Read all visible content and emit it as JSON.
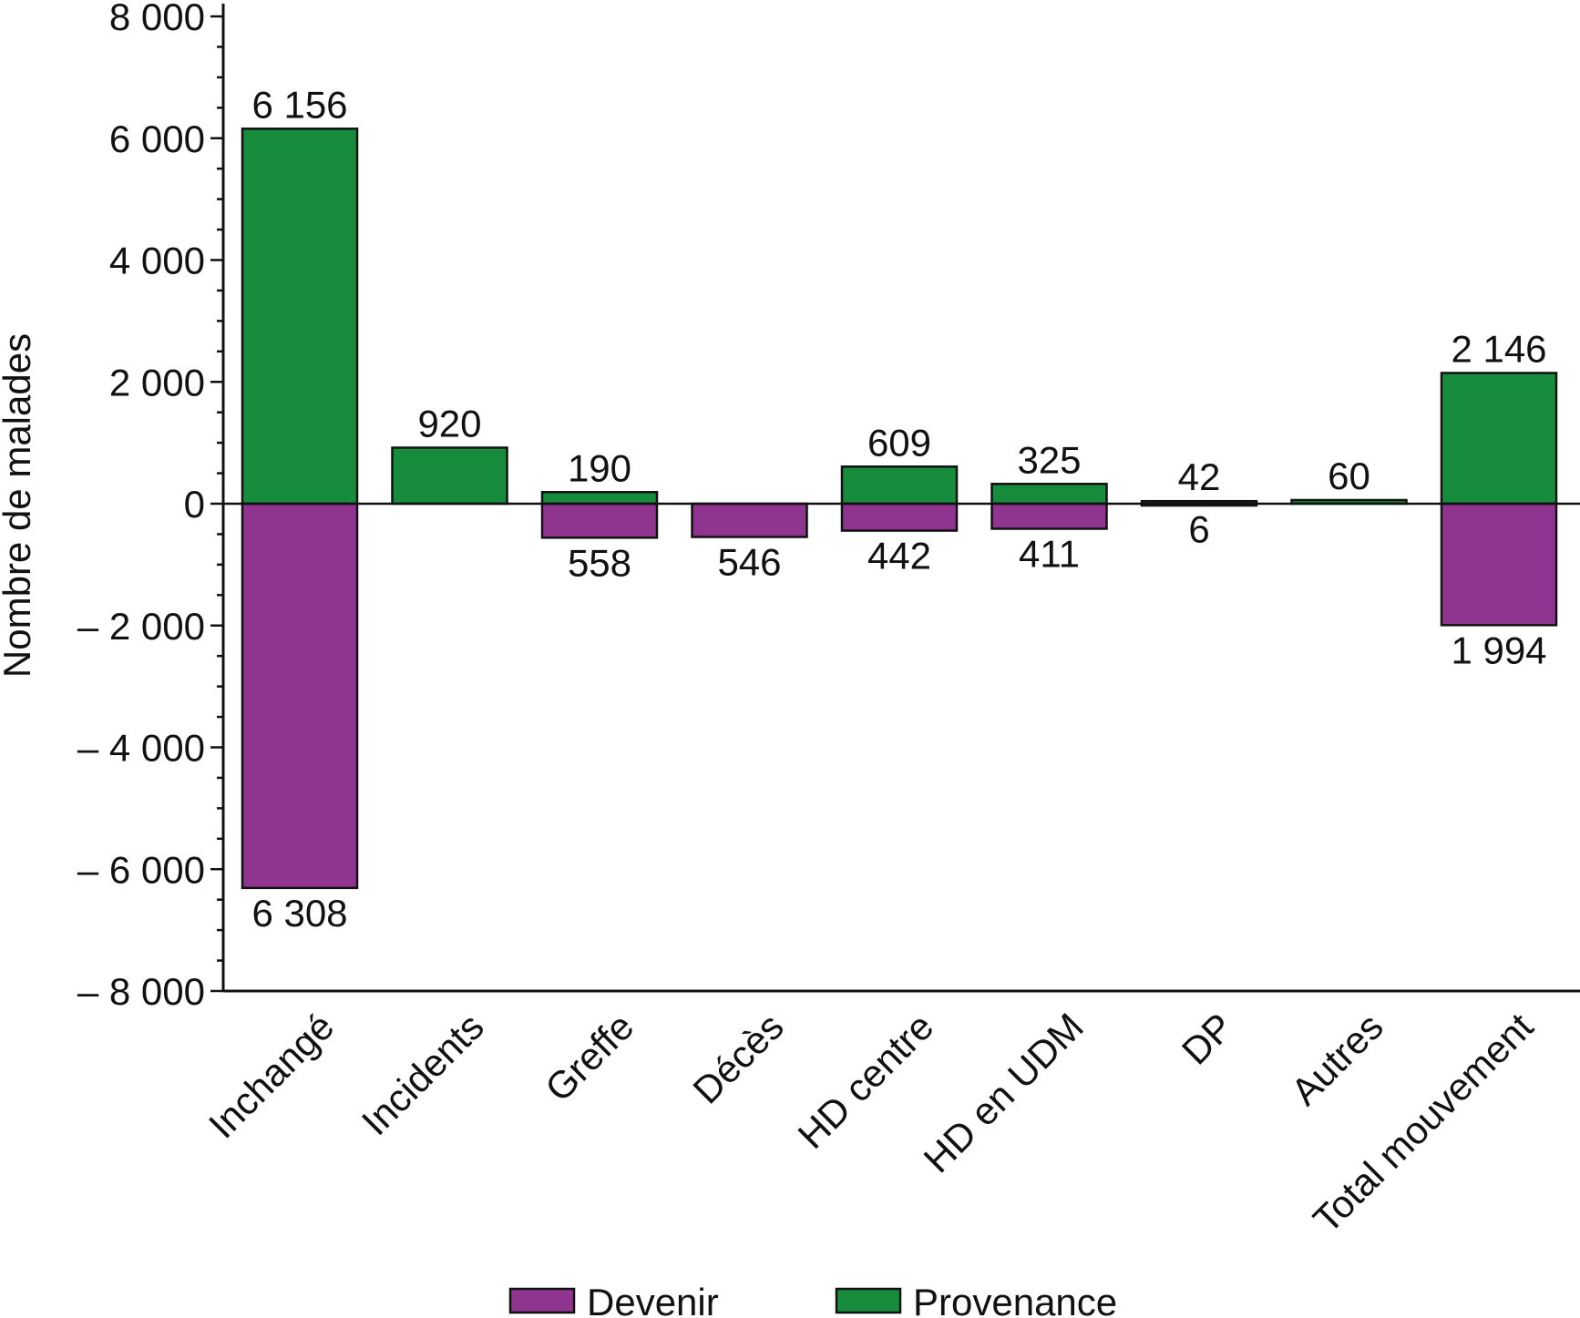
{
  "chart_data": {
    "type": "bar",
    "ylabel": "Nombre de malades",
    "ylim": [
      -8000,
      8000
    ],
    "yticks": [
      8000,
      6000,
      4000,
      2000,
      0,
      -2000,
      -4000,
      -6000,
      -8000
    ],
    "ytick_labels": [
      "8 000",
      "6 000",
      "4 000",
      "2 000",
      "0",
      "– 2 000",
      "– 4 000",
      "– 6 000",
      "– 8 000"
    ],
    "categories": [
      "Inchangé",
      "Incidents",
      "Greffe",
      "Décès",
      "HD centre",
      "HD en UDM",
      "DP",
      "Autres",
      "Total mouvement"
    ],
    "series": [
      {
        "name": "Provenance",
        "color": "#168c3c",
        "values": [
          6156,
          920,
          190,
          0,
          609,
          325,
          42,
          60,
          2146
        ],
        "labels": [
          "6 156",
          "920",
          "190",
          "",
          "609",
          "325",
          "42",
          "60",
          "2 146"
        ]
      },
      {
        "name": "Devenir",
        "color": "#8f358f",
        "values": [
          -6308,
          0,
          -558,
          -546,
          -442,
          -411,
          -6,
          0,
          -1994
        ],
        "labels": [
          "6 308",
          "",
          "558",
          "546",
          "442",
          "411",
          "6",
          "",
          "1 994"
        ]
      }
    ],
    "legend": {
      "position": "bottom",
      "order": [
        "Devenir",
        "Provenance"
      ]
    },
    "grid": false
  }
}
